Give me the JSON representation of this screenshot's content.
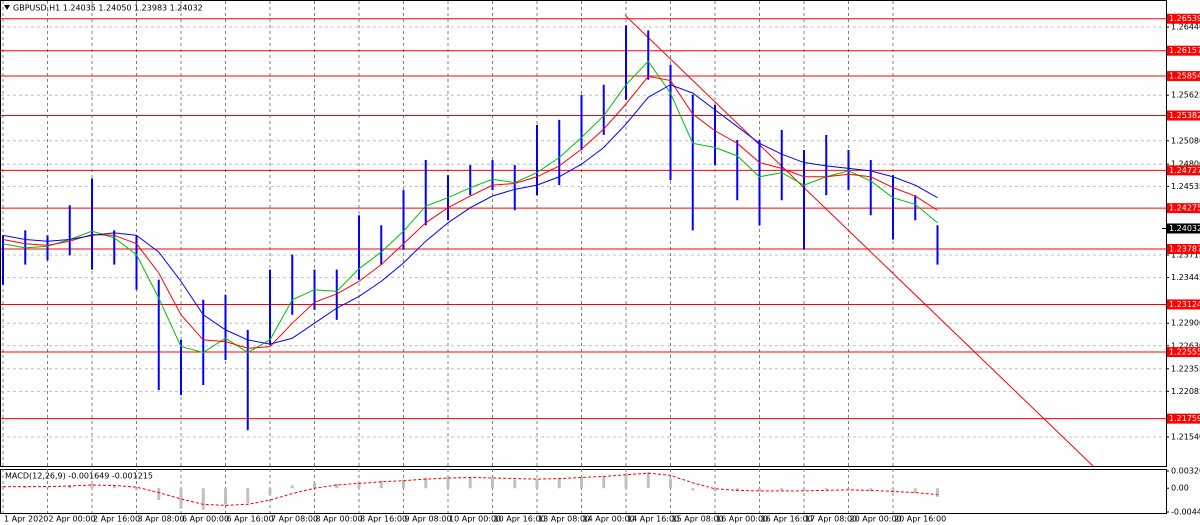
{
  "chart_data": [
    {
      "type": "range-bar",
      "title": "GBPUSD,H1  1.24035 1.24050 1.23983 1.24032",
      "categories": [
        "1 Apr 2020",
        null,
        "2 Apr 00:00",
        null,
        "2 Apr 16:00",
        null,
        "3 Apr 08:00",
        null,
        "6 Apr 00:00",
        null,
        "6 Apr 16:00",
        null,
        "7 Apr 08:00",
        null,
        "8 Apr 00:00",
        null,
        "8 Apr 16:00",
        null,
        "9 Apr 08:00",
        null,
        "10 Apr 00:00",
        null,
        "10 Apr 16:00",
        null,
        "13 Apr 08:00",
        null,
        "14 Apr 00:00",
        null,
        "14 Apr 16:00",
        null,
        "15 Apr 08:00",
        null,
        "16 Apr 00:00",
        null,
        "16 Apr 16:00",
        null,
        "17 Apr 08:00",
        null,
        "20 Apr 00:00",
        null,
        "20 Apr 16:00",
        null,
        null
      ],
      "color": "#0000ff",
      "high": [
        1.2395,
        1.2401,
        1.2395,
        1.2431,
        1.2463,
        1.2401,
        1.2395,
        1.2342,
        1.227,
        1.2318,
        1.2324,
        1.2282,
        1.2354,
        1.2372,
        1.2354,
        1.2354,
        1.2419,
        1.2407,
        1.2449,
        1.2485,
        1.2467,
        1.2479,
        1.2485,
        1.2479,
        1.2527,
        1.2533,
        1.2563,
        1.2575,
        1.2646,
        1.264,
        1.2599,
        1.2563,
        1.2551,
        1.2509,
        1.2509,
        1.2521,
        1.2497,
        1.2515,
        1.2497,
        1.2485,
        1.2467,
        1.2443,
        1.2407
      ],
      "low": [
        1.2336,
        1.236,
        1.2365,
        1.2371,
        1.2354,
        1.236,
        1.233,
        1.221,
        1.2204,
        1.2216,
        1.2246,
        1.2162,
        1.2264,
        1.23,
        1.2306,
        1.2294,
        1.2342,
        1.236,
        1.2378,
        1.2407,
        1.2413,
        1.2443,
        1.2449,
        1.2425,
        1.2443,
        1.2455,
        1.2497,
        1.2515,
        1.2557,
        1.2581,
        1.2461,
        1.2401,
        1.2479,
        1.2437,
        1.2407,
        1.2437,
        1.2378,
        1.2443,
        1.2449,
        1.2419,
        1.239,
        1.2413,
        1.236
      ],
      "lines": [
        {
          "color": "#00c000",
          "values": [
            1.2385,
            1.238,
            1.2382,
            1.239,
            1.24,
            1.2392,
            1.2372,
            1.232,
            1.2262,
            1.2255,
            1.2272,
            1.2255,
            1.227,
            1.2318,
            1.233,
            1.2328,
            1.2355,
            1.2375,
            1.24,
            1.243,
            1.244,
            1.2452,
            1.2462,
            1.2458,
            1.247,
            1.2488,
            1.2512,
            1.2538,
            1.2575,
            1.2603,
            1.2565,
            1.2505,
            1.25,
            1.249,
            1.2465,
            1.247,
            1.2455,
            1.2465,
            1.2472,
            1.246,
            1.244,
            1.2432,
            1.241
          ]
        },
        {
          "color": "#ff0000",
          "values": [
            1.239,
            1.2385,
            1.2383,
            1.2388,
            1.2396,
            1.2395,
            1.2385,
            1.235,
            1.23,
            1.227,
            1.2268,
            1.226,
            1.2262,
            1.229,
            1.2315,
            1.2325,
            1.234,
            1.236,
            1.2385,
            1.241,
            1.2428,
            1.2442,
            1.2455,
            1.2457,
            1.2465,
            1.2478,
            1.2498,
            1.2522,
            1.2552,
            1.2585,
            1.258,
            1.254,
            1.252,
            1.2505,
            1.2482,
            1.2475,
            1.2465,
            1.2465,
            1.2468,
            1.2465,
            1.2452,
            1.2442,
            1.2425
          ]
        },
        {
          "color": "#0000ff",
          "values": [
            1.2395,
            1.239,
            1.2388,
            1.239,
            1.2395,
            1.2398,
            1.2395,
            1.2375,
            1.234,
            1.23,
            1.2282,
            1.227,
            1.2265,
            1.2272,
            1.229,
            1.2308,
            1.2322,
            1.234,
            1.2362,
            1.2388,
            1.241,
            1.2428,
            1.2442,
            1.245,
            1.2455,
            1.2465,
            1.248,
            1.25,
            1.2528,
            1.256,
            1.2575,
            1.2565,
            1.2545,
            1.2525,
            1.2505,
            1.2492,
            1.2482,
            1.2478,
            1.2475,
            1.2472,
            1.2465,
            1.2455,
            1.244
          ]
        }
      ],
      "levels": {
        "color": "#ff0000",
        "values": [
          1.26539,
          1.26157,
          1.25854,
          1.25382,
          1.24727,
          1.24275,
          1.23787,
          1.23124,
          1.22555,
          1.21759
        ]
      },
      "current_price": 1.24032,
      "trend_line": {
        "color": "#ff0000",
        "x": [
          27.96,
          49
        ],
        "y": [
          1.2658,
          1.2119
        ]
      },
      "ylim": [
        1.21193,
        1.26763
      ],
      "yticks": [
        {
          "value": 1.2644,
          "label": "1.26440"
        },
        1.25625,
        {
          "value": 1.2508,
          "label": "1.25080"
        },
        {
          "value": 1.248,
          "label": "1.24800"
        },
        1.24535,
        1.23715,
        1.23445,
        {
          "value": 1.229,
          "label": "1.22900"
        },
        {
          "value": 1.2263,
          "label": "1.22630"
        },
        1.22355,
        1.22085,
        {
          "value": 1.2154,
          "label": "1.21540"
        }
      ],
      "grid": true
    },
    {
      "type": "macd",
      "title": "MACD(12,26,9) -0.001649 -0.001215",
      "histogram": {
        "color": "#c0c0c0",
        "values": [
          0.0004,
          0.0003,
          0.0002,
          0.0006,
          0.0009,
          0.0004,
          -0.0003,
          -0.0022,
          -0.0038,
          -0.004,
          -0.003,
          -0.0028,
          -0.0012,
          0.0005,
          0.001,
          0.0008,
          0.0012,
          0.0014,
          0.0016,
          0.002,
          0.0021,
          0.002,
          0.0018,
          0.0016,
          0.0017,
          0.0019,
          0.0021,
          0.0023,
          0.0028,
          0.003,
          0.0018,
          -0.0004,
          -0.0006,
          -0.0005,
          -0.0006,
          -0.0004,
          -0.0005,
          -0.0003,
          -0.0002,
          -0.0005,
          -0.0008,
          -0.0009,
          -0.0016
        ]
      },
      "signal": {
        "color": "#ff0000",
        "values": [
          0.0003,
          0.0003,
          0.0003,
          0.0004,
          0.0006,
          0.0005,
          0.0002,
          -0.0008,
          -0.002,
          -0.003,
          -0.0032,
          -0.003,
          -0.0022,
          -0.001,
          0.0,
          0.0006,
          0.0009,
          0.0012,
          0.0014,
          0.0017,
          0.0019,
          0.002,
          0.0019,
          0.0018,
          0.0017,
          0.0018,
          0.002,
          0.0022,
          0.0025,
          0.0028,
          0.0024,
          0.001,
          -0.0001,
          -0.0004,
          -0.0005,
          -0.0005,
          -0.0005,
          -0.0004,
          -0.0003,
          -0.0004,
          -0.0006,
          -0.0008,
          -0.0012
        ]
      },
      "ylim": [
        -0.00443,
        0.003208
      ],
      "yticks": [
        0.003208,
        {
          "value": 0,
          "label": "0.00"
        },
        -0.00443
      ]
    }
  ]
}
